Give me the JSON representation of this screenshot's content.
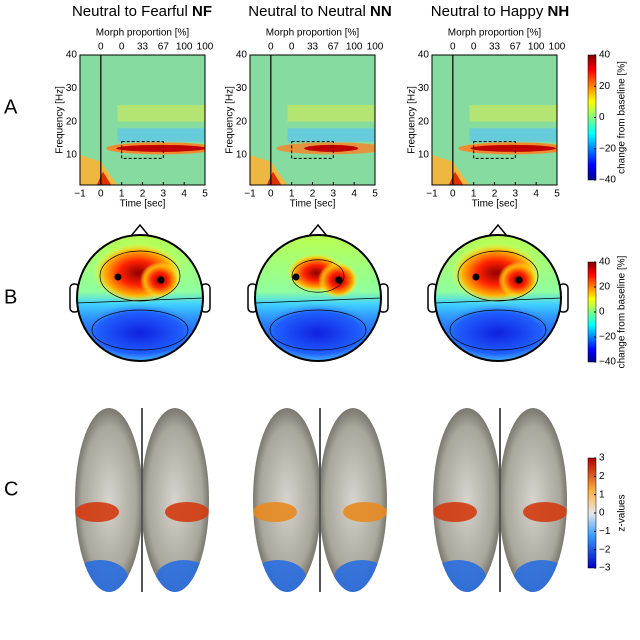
{
  "columns": [
    {
      "title": "Neutral to Fearful",
      "code": "NF"
    },
    {
      "title": "Neutral to Neutral",
      "code": "NN"
    },
    {
      "title": "Neutral to Happy",
      "code": "NH"
    }
  ],
  "row_labels": [
    "A",
    "B",
    "C"
  ],
  "time_frequency": {
    "top_label": "Morph proportion [%]",
    "top_ticks": [
      "0",
      "0",
      "33",
      "67",
      "100",
      "100"
    ],
    "y_label": "Frequency [Hz]",
    "y_ticks": [
      "10",
      "20",
      "30",
      "40"
    ],
    "x_label": "Time [sec]",
    "x_ticks": [
      "−1",
      "0",
      "1",
      "2",
      "3",
      "4",
      "5"
    ]
  },
  "colorbar_a": {
    "label": "change from baseline [%]",
    "ticks": [
      "40",
      "20",
      "0",
      "−20",
      "−40"
    ]
  },
  "colorbar_b": {
    "label": "change from baseline [%]",
    "ticks": [
      "40",
      "20",
      "0",
      "−20",
      "−40"
    ]
  },
  "colorbar_c": {
    "label": "z-values",
    "ticks": [
      "3",
      "2",
      "1",
      "0",
      "−1",
      "−2",
      "−3"
    ]
  }
}
